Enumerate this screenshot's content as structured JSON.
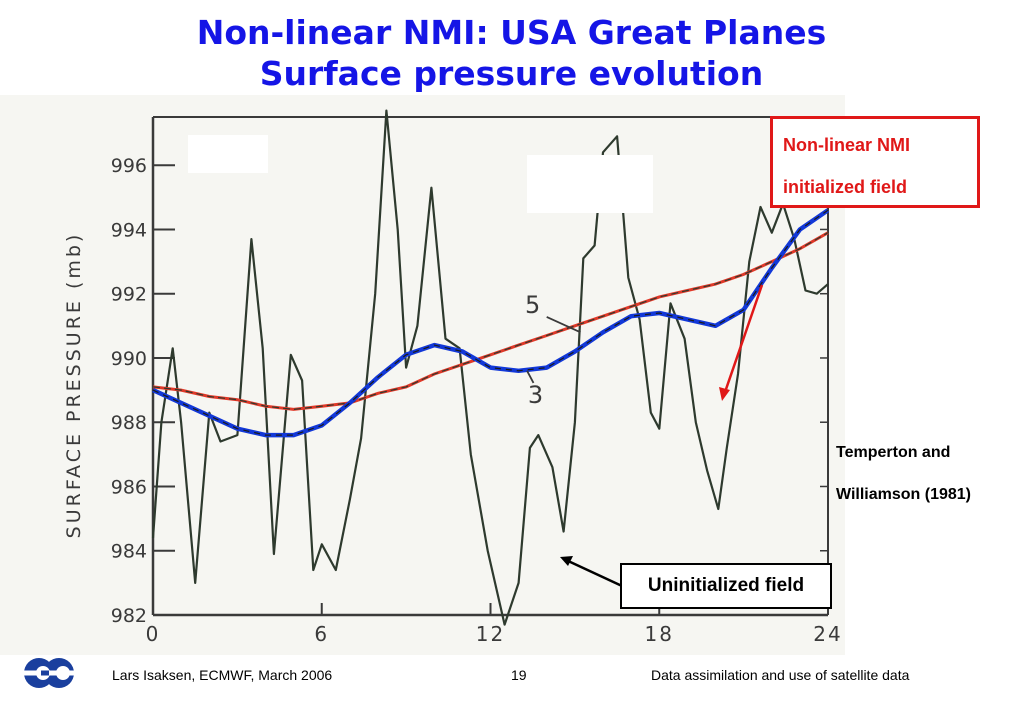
{
  "header": {
    "title_line1": "Non-linear NMI: USA Great Planes",
    "title_line2": "Surface pressure evolution"
  },
  "colors": {
    "title": "#1515e6",
    "callout": "#e01818",
    "uninitialized": "#2e3a2e",
    "nmi_3_blue": "#1238d8",
    "nmi_5_red": "#e03828"
  },
  "callout_nmi": {
    "line1": "Non-linear NMI",
    "line2": "initialized field"
  },
  "callout_uninit": {
    "label": "Uninitialized field"
  },
  "reference": {
    "line1": "Temperton and",
    "line2": "Williamson (1981)"
  },
  "footer": {
    "author": "Lars Isaksen, ECMWF, March 2006",
    "page": "19",
    "course": "Data assimilation and use of satellite data"
  },
  "logo": {
    "icon": "ecmwf-logo-icon"
  },
  "chart_data": {
    "type": "line",
    "ylabel": "SURFACE PRESSURE (mb)",
    "xlabel": "",
    "xlim": [
      0,
      24
    ],
    "ylim": [
      982,
      997.5
    ],
    "xticks": [
      0,
      6,
      12,
      18,
      24
    ],
    "yticks": [
      982,
      984,
      986,
      988,
      990,
      992,
      994,
      996
    ],
    "grid": false,
    "annotations": [
      {
        "text": "5",
        "x": 13.5,
        "y": 991.4
      },
      {
        "text": "3",
        "x": 13.6,
        "y": 988.6
      }
    ],
    "series": [
      {
        "name": "",
        "color": "#2e3a2e",
        "x": [
          0,
          0.3,
          0.7,
          1.0,
          1.5,
          2.0,
          2.4,
          3.0,
          3.5,
          3.9,
          4.3,
          4.9,
          5.3,
          5.7,
          6.0,
          6.5,
          7.0,
          7.4,
          7.9,
          8.3,
          8.7,
          9.0,
          9.4,
          9.9,
          10.4,
          10.9,
          11.3,
          11.9,
          12.5,
          13.0,
          13.4,
          13.7,
          14.2,
          14.6,
          15.0,
          15.3,
          15.7,
          16.0,
          16.5,
          16.9,
          17.3,
          17.7,
          18.0,
          18.4,
          18.9,
          19.3,
          19.7,
          20.1,
          20.4,
          20.8,
          21.2,
          21.6,
          22.0,
          22.4,
          22.8,
          23.2,
          23.6,
          24.0
        ],
        "y": [
          984.4,
          988.0,
          990.3,
          988.0,
          983.0,
          988.3,
          987.4,
          987.6,
          993.7,
          990.3,
          983.9,
          990.1,
          989.3,
          983.4,
          984.2,
          983.4,
          985.6,
          987.5,
          992.0,
          997.7,
          994.0,
          989.7,
          991.0,
          995.3,
          990.6,
          990.3,
          987.0,
          984.0,
          981.7,
          983.0,
          987.2,
          987.6,
          986.6,
          984.6,
          988.0,
          993.1,
          993.5,
          996.4,
          996.9,
          992.5,
          991.2,
          988.3,
          987.8,
          991.7,
          990.6,
          988.0,
          986.5,
          985.3,
          987.2,
          989.5,
          993.0,
          994.7,
          993.9,
          994.8,
          993.7,
          992.1,
          992.0,
          992.3
        ]
      },
      {
        "name": "3",
        "color": "#1238d8",
        "x": [
          0,
          1,
          2,
          3,
          4,
          5,
          6,
          7,
          8,
          9,
          10,
          11,
          12,
          13,
          14,
          15,
          16,
          17,
          18,
          19,
          20,
          21,
          22,
          23,
          24
        ],
        "y": [
          989.0,
          988.6,
          988.2,
          987.8,
          987.6,
          987.6,
          987.9,
          988.6,
          989.4,
          990.1,
          990.4,
          990.2,
          989.7,
          989.6,
          989.7,
          990.2,
          990.8,
          991.3,
          991.4,
          991.2,
          991.0,
          991.5,
          992.8,
          994.0,
          994.6
        ]
      },
      {
        "name": "5",
        "color": "#e03828",
        "x": [
          0,
          1,
          2,
          3,
          4,
          5,
          6,
          7,
          8,
          9,
          10,
          11,
          12,
          13,
          14,
          15,
          16,
          17,
          18,
          19,
          20,
          21,
          22,
          23,
          24
        ],
        "y": [
          989.1,
          989.0,
          988.8,
          988.7,
          988.5,
          988.4,
          988.5,
          988.6,
          988.9,
          989.1,
          989.5,
          989.8,
          990.1,
          990.4,
          990.7,
          991.0,
          991.3,
          991.6,
          991.9,
          992.1,
          992.3,
          992.6,
          993.0,
          993.4,
          993.9
        ]
      }
    ]
  }
}
